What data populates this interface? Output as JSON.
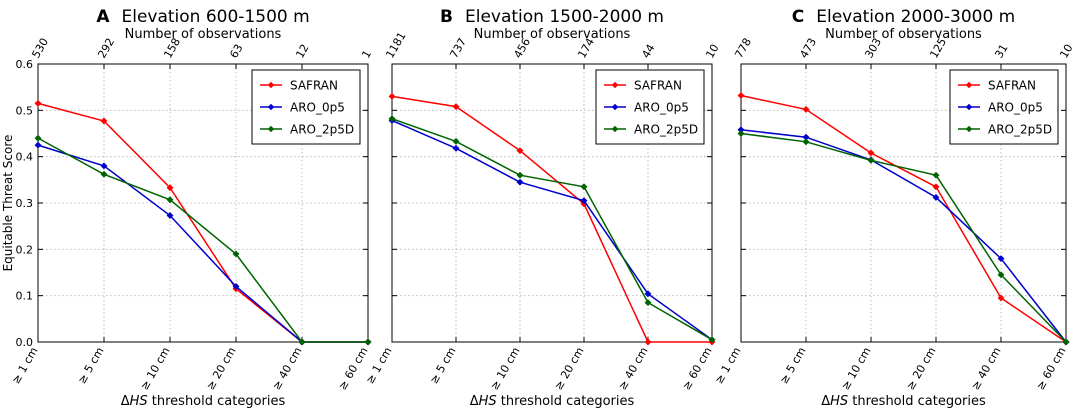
{
  "chart_data": [
    {
      "type": "line",
      "panel_letter": "A",
      "title": "Elevation 600-1500 m",
      "top_axis_label": "Number of observations",
      "observations": [
        "530",
        "292",
        "158",
        "63",
        "12",
        "1"
      ],
      "categories": [
        "≥ 1 cm",
        "≥ 5 cm",
        "≥ 10 cm",
        "≥ 20 cm",
        "≥ 40 cm",
        "≥ 60 cm"
      ],
      "ylabel": "Equitable Threat Score",
      "xlabel_prefix": "Δ",
      "xlabel_var": "HS",
      "xlabel_suffix": " threshold categories",
      "ylim": [
        0,
        0.6
      ],
      "yticks": [
        "0.0",
        "0.1",
        "0.2",
        "0.3",
        "0.4",
        "0.5",
        "0.6"
      ],
      "grid": true,
      "legend_position": "top-right",
      "series": [
        {
          "name": "SAFRAN",
          "color": "#ff0000",
          "values": [
            0.515,
            0.477,
            0.333,
            0.115,
            0.0,
            0.0
          ]
        },
        {
          "name": "ARO_0p5",
          "color": "#0000cc",
          "values": [
            0.425,
            0.38,
            0.273,
            0.12,
            0.0,
            0.0
          ]
        },
        {
          "name": "ARO_2p5D",
          "color": "#006400",
          "values": [
            0.44,
            0.362,
            0.307,
            0.19,
            0.0,
            0.0
          ]
        }
      ]
    },
    {
      "type": "line",
      "panel_letter": "B",
      "title": "Elevation 1500-2000 m",
      "top_axis_label": "Number of observations",
      "observations": [
        "1181",
        "737",
        "456",
        "174",
        "44",
        "10"
      ],
      "categories": [
        "≥ 1 cm",
        "≥ 5 cm",
        "≥ 10 cm",
        "≥ 20 cm",
        "≥ 40 cm",
        "≥ 60 cm"
      ],
      "ylabel": "",
      "xlabel_prefix": "Δ",
      "xlabel_var": "HS",
      "xlabel_suffix": " threshold categories",
      "ylim": [
        0,
        0.6
      ],
      "yticks": [
        "0.0",
        "0.1",
        "0.2",
        "0.3",
        "0.4",
        "0.5",
        "0.6"
      ],
      "grid": true,
      "legend_position": "top-right",
      "series": [
        {
          "name": "SAFRAN",
          "color": "#ff0000",
          "values": [
            0.53,
            0.508,
            0.413,
            0.298,
            0.0,
            0.0
          ]
        },
        {
          "name": "ARO_0p5",
          "color": "#0000cc",
          "values": [
            0.478,
            0.418,
            0.345,
            0.305,
            0.104,
            0.005
          ]
        },
        {
          "name": "ARO_2p5D",
          "color": "#006400",
          "values": [
            0.482,
            0.433,
            0.36,
            0.335,
            0.085,
            0.005
          ]
        }
      ]
    },
    {
      "type": "line",
      "panel_letter": "C",
      "title": "Elevation 2000-3000 m",
      "top_axis_label": "Number of observations",
      "observations": [
        "778",
        "473",
        "303",
        "125",
        "31",
        "10"
      ],
      "categories": [
        "≥ 1 cm",
        "≥ 5 cm",
        "≥ 10 cm",
        "≥ 20 cm",
        "≥ 40 cm",
        "≥ 60 cm"
      ],
      "ylabel": "",
      "xlabel_prefix": "Δ",
      "xlabel_var": "HS",
      "xlabel_suffix": " threshold categories",
      "ylim": [
        0,
        0.6
      ],
      "yticks": [
        "0.0",
        "0.1",
        "0.2",
        "0.3",
        "0.4",
        "0.5",
        "0.6"
      ],
      "grid": true,
      "legend_position": "top-right",
      "series": [
        {
          "name": "SAFRAN",
          "color": "#ff0000",
          "values": [
            0.532,
            0.502,
            0.408,
            0.335,
            0.095,
            0.0
          ]
        },
        {
          "name": "ARO_0p5",
          "color": "#0000cc",
          "values": [
            0.458,
            0.442,
            0.393,
            0.312,
            0.18,
            0.0
          ]
        },
        {
          "name": "ARO_2p5D",
          "color": "#006400",
          "values": [
            0.45,
            0.432,
            0.392,
            0.36,
            0.145,
            0.0
          ]
        }
      ]
    }
  ]
}
